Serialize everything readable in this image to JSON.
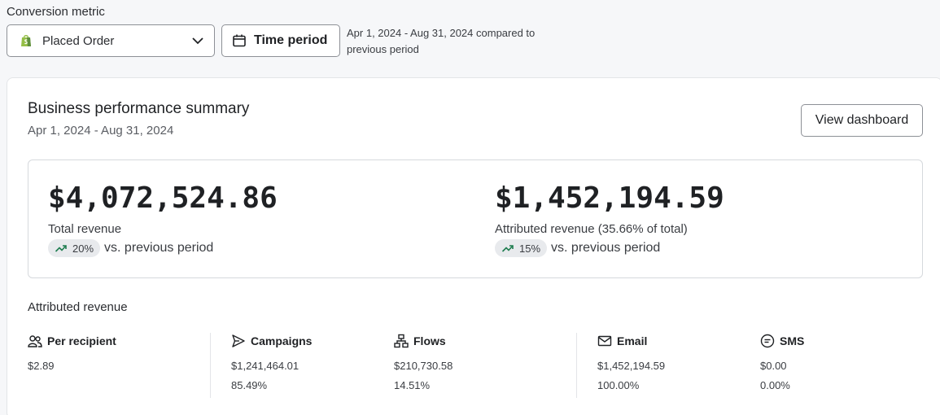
{
  "conversion": {
    "label": "Conversion metric",
    "selected": "Placed Order",
    "time_button": "Time period",
    "range_note": "Apr 1, 2024 - Aug 31, 2024 compared to previous period"
  },
  "summary": {
    "title": "Business performance summary",
    "date_range": "Apr 1, 2024 - Aug 31, 2024",
    "dashboard_button": "View dashboard",
    "kpis": [
      {
        "value": "$4,072,524.86",
        "label": "Total revenue",
        "change": "20%",
        "change_text": "vs. previous period"
      },
      {
        "value": "$1,452,194.59",
        "label": "Attributed revenue (35.66% of total)",
        "change": "15%",
        "change_text": "vs. previous period"
      }
    ]
  },
  "attributed": {
    "title": "Attributed revenue",
    "columns": [
      {
        "name": "Per recipient",
        "icon": "users-icon",
        "value": "$2.89",
        "pct": ""
      },
      {
        "name": "Campaigns",
        "icon": "send-icon",
        "value": "$1,241,464.01",
        "pct": "85.49%"
      },
      {
        "name": "Flows",
        "icon": "flows-icon",
        "value": "$210,730.58",
        "pct": "14.51%"
      },
      {
        "name": "Email",
        "icon": "mail-icon",
        "value": "$1,452,194.59",
        "pct": "100.00%"
      },
      {
        "name": "SMS",
        "icon": "sms-icon",
        "value": "$0.00",
        "pct": "0.00%"
      }
    ]
  },
  "colors": {
    "shopify_green": "#95bf47",
    "trend_green": "#1e7d4f",
    "border": "#8d9096"
  }
}
